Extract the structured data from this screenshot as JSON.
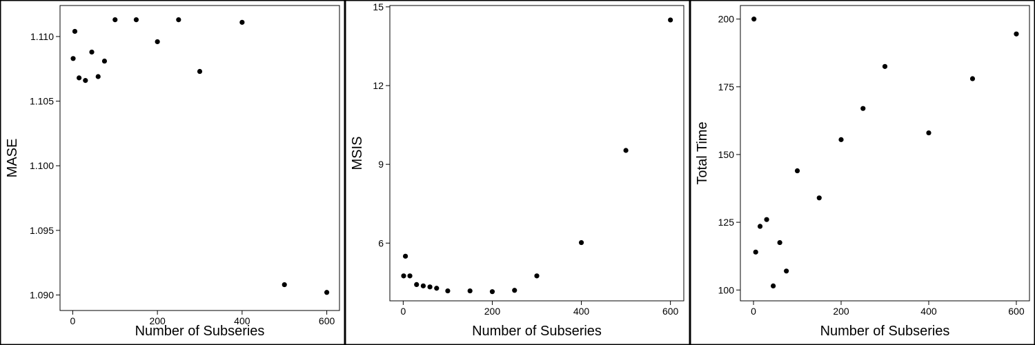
{
  "chart_data": [
    {
      "type": "scatter",
      "xlabel": "Number of Subseries",
      "ylabel": "MASE",
      "xlim": [
        -30,
        630
      ],
      "ylim": [
        1.0888,
        1.1124
      ],
      "xticks": [
        0,
        200,
        400,
        600
      ],
      "xtick_labels": [
        "0",
        "200",
        "400",
        "600"
      ],
      "yticks": [
        1.09,
        1.095,
        1.1,
        1.105,
        1.11
      ],
      "ytick_labels": [
        "1.090",
        "1.095",
        "1.100",
        "1.105",
        "1.110"
      ],
      "grid": false,
      "points": [
        {
          "x": 1,
          "y": 1.1083
        },
        {
          "x": 5,
          "y": 1.1104
        },
        {
          "x": 15,
          "y": 1.1068
        },
        {
          "x": 30,
          "y": 1.1066
        },
        {
          "x": 45,
          "y": 1.1088
        },
        {
          "x": 60,
          "y": 1.1069
        },
        {
          "x": 75,
          "y": 1.1081
        },
        {
          "x": 100,
          "y": 1.1113
        },
        {
          "x": 150,
          "y": 1.1113
        },
        {
          "x": 200,
          "y": 1.1096
        },
        {
          "x": 250,
          "y": 1.1113
        },
        {
          "x": 300,
          "y": 1.1073
        },
        {
          "x": 400,
          "y": 1.1111
        },
        {
          "x": 500,
          "y": 1.0908
        },
        {
          "x": 600,
          "y": 1.0902
        }
      ]
    },
    {
      "type": "scatter",
      "xlabel": "Number of Subseries",
      "ylabel": "MSIS",
      "xlim": [
        -30,
        630
      ],
      "ylim": [
        3.8,
        15.05
      ],
      "xticks": [
        0,
        200,
        400,
        600
      ],
      "xtick_labels": [
        "0",
        "200",
        "400",
        "600"
      ],
      "yticks": [
        6,
        9,
        12,
        15
      ],
      "ytick_labels": [
        "6",
        "9",
        "12",
        "15"
      ],
      "grid": false,
      "points": [
        {
          "x": 1,
          "y": 4.75
        },
        {
          "x": 5,
          "y": 5.5
        },
        {
          "x": 15,
          "y": 4.75
        },
        {
          "x": 30,
          "y": 4.42
        },
        {
          "x": 45,
          "y": 4.37
        },
        {
          "x": 60,
          "y": 4.33
        },
        {
          "x": 75,
          "y": 4.28
        },
        {
          "x": 100,
          "y": 4.18
        },
        {
          "x": 150,
          "y": 4.18
        },
        {
          "x": 200,
          "y": 4.15
        },
        {
          "x": 250,
          "y": 4.2
        },
        {
          "x": 300,
          "y": 4.75
        },
        {
          "x": 400,
          "y": 6.02
        },
        {
          "x": 500,
          "y": 9.53
        },
        {
          "x": 600,
          "y": 14.5
        }
      ]
    },
    {
      "type": "scatter",
      "xlabel": "Number of Subseries",
      "ylabel": "Total Time",
      "xlim": [
        -30,
        630
      ],
      "ylim": [
        96,
        205
      ],
      "xticks": [
        0,
        200,
        400,
        600
      ],
      "xtick_labels": [
        "0",
        "200",
        "400",
        "600"
      ],
      "yticks": [
        100,
        125,
        150,
        175,
        200
      ],
      "ytick_labels": [
        "100",
        "125",
        "150",
        "175",
        "200"
      ],
      "grid": false,
      "points": [
        {
          "x": 1,
          "y": 200.0
        },
        {
          "x": 5,
          "y": 114.0
        },
        {
          "x": 15,
          "y": 123.5
        },
        {
          "x": 30,
          "y": 126.0
        },
        {
          "x": 45,
          "y": 101.5
        },
        {
          "x": 60,
          "y": 117.5
        },
        {
          "x": 75,
          "y": 107.0
        },
        {
          "x": 100,
          "y": 144.0
        },
        {
          "x": 150,
          "y": 134.0
        },
        {
          "x": 200,
          "y": 155.5
        },
        {
          "x": 250,
          "y": 167.0
        },
        {
          "x": 300,
          "y": 182.5
        },
        {
          "x": 400,
          "y": 158.0
        },
        {
          "x": 500,
          "y": 178.0
        },
        {
          "x": 600,
          "y": 194.5
        }
      ]
    }
  ]
}
